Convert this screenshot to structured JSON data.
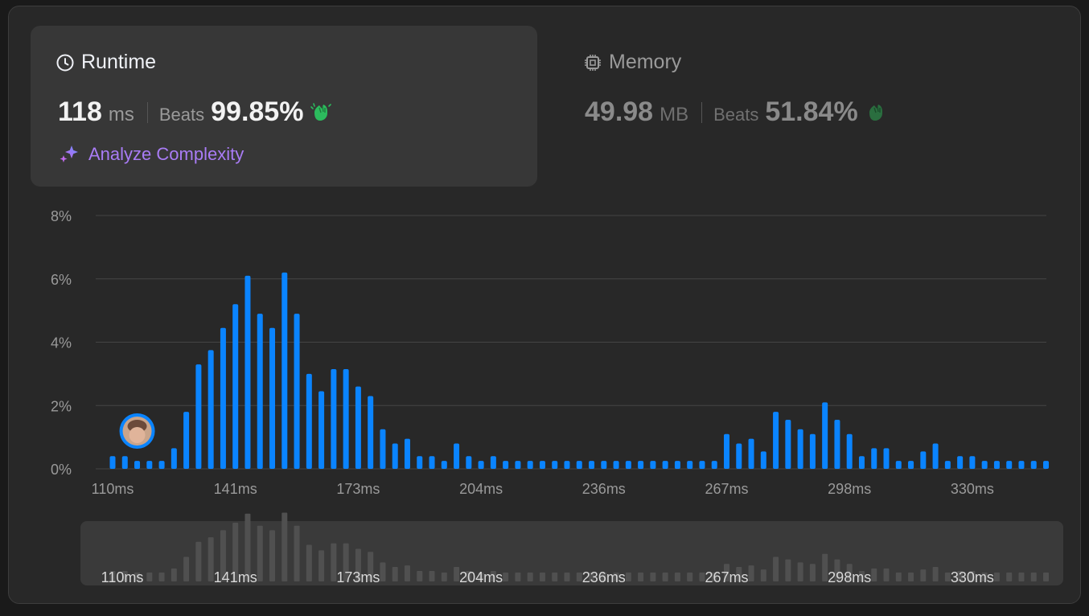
{
  "runtime": {
    "title": "Runtime",
    "value": "118",
    "unit": "ms",
    "beats_label": "Beats",
    "beats_value": "99.85%",
    "analyze_label": "Analyze Complexity"
  },
  "memory": {
    "title": "Memory",
    "value": "49.98",
    "unit": "MB",
    "beats_label": "Beats",
    "beats_value": "51.84%"
  },
  "colors": {
    "bar": "#0a84ff",
    "mini_bar": "#505050",
    "accent_purple": "#a97cf5",
    "clap_green": "#2cbb5d"
  },
  "chart_data": {
    "type": "bar",
    "y_ticks": [
      "8%",
      "6%",
      "4%",
      "2%",
      "0%"
    ],
    "ylim": [
      0,
      8
    ],
    "x_tick_labels": [
      "110ms",
      "141ms",
      "173ms",
      "204ms",
      "236ms",
      "267ms",
      "298ms",
      "330ms"
    ],
    "user_marker_bin": 2,
    "values": [
      0.4,
      0.4,
      0.25,
      0.25,
      0.25,
      0.65,
      1.8,
      3.3,
      3.75,
      4.45,
      5.2,
      6.1,
      4.9,
      4.45,
      6.2,
      4.9,
      3.0,
      2.45,
      3.15,
      3.15,
      2.6,
      2.3,
      1.25,
      0.8,
      0.95,
      0.4,
      0.4,
      0.25,
      0.8,
      0.4,
      0.25,
      0.4,
      0.25,
      0.25,
      0.25,
      0.25,
      0.25,
      0.25,
      0.25,
      0.25,
      0.25,
      0.25,
      0.25,
      0.25,
      0.25,
      0.25,
      0.25,
      0.25,
      0.25,
      0.25,
      1.1,
      0.8,
      0.95,
      0.55,
      1.8,
      1.55,
      1.25,
      1.1,
      2.1,
      1.55,
      1.1,
      0.4,
      0.65,
      0.65,
      0.25,
      0.25,
      0.55,
      0.8,
      0.25,
      0.4,
      0.4,
      0.25,
      0.25,
      0.25,
      0.25,
      0.25,
      0.25
    ]
  }
}
